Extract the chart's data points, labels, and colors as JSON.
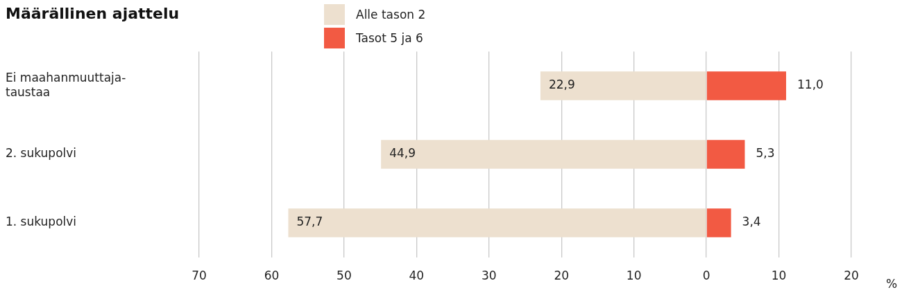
{
  "chart_data": {
    "type": "bar",
    "title": "Määrällinen ajattelu",
    "orientation": "horizontal",
    "categories": [
      "Ei maahanmuuttaja-taustaa",
      "2. sukupolvi",
      "1. sukupolvi"
    ],
    "series": [
      {
        "name": "Alle tason 2",
        "color": "#ede0cf",
        "base": [
          -22.9,
          -44.9,
          -57.7
        ],
        "values": [
          22.9,
          44.9,
          57.7
        ],
        "value_labels": [
          "22,9",
          "44,9",
          "57,7"
        ]
      },
      {
        "name": "Tasot 5 ja 6",
        "color": "#f25a43",
        "values": [
          11.0,
          5.3,
          3.4
        ],
        "value_labels": [
          "11,0",
          "5,3",
          "3,4"
        ]
      }
    ],
    "xlim": [
      -70,
      20
    ],
    "xticks": [
      {
        "value": -70,
        "label": "70"
      },
      {
        "value": -60,
        "label": "60"
      },
      {
        "value": -50,
        "label": "50"
      },
      {
        "value": -40,
        "label": "40"
      },
      {
        "value": -30,
        "label": "30"
      },
      {
        "value": -20,
        "label": "20"
      },
      {
        "value": -10,
        "label": "10"
      },
      0,
      10,
      20
    ],
    "xlabel": "%",
    "grid": "x",
    "legend": "top"
  }
}
